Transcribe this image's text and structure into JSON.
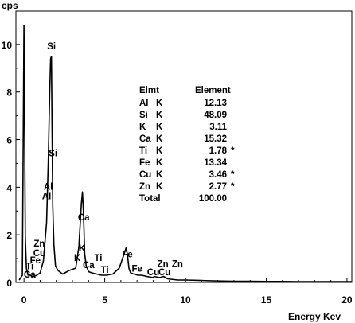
{
  "chart_data": {
    "type": "line",
    "title": "",
    "xlabel": "Energy Kev",
    "ylabel": "cps",
    "xlim": [
      -0.5,
      20.3
    ],
    "ylim": [
      0,
      11.4
    ],
    "x_ticks": [
      0,
      5,
      10,
      15,
      20
    ],
    "y_ticks": [
      0,
      2,
      4,
      6,
      8,
      10
    ],
    "grid": false,
    "series": [
      {
        "x": [
          -0.3,
          -0.1,
          0.0,
          0.08,
          0.15,
          0.25,
          0.3,
          0.4,
          0.5,
          0.6,
          0.8,
          1.0,
          1.2,
          1.4,
          1.5,
          1.6,
          1.65,
          1.7,
          1.74,
          1.78,
          1.85,
          1.95,
          2.1,
          2.4,
          2.8,
          3.2,
          3.4,
          3.55,
          3.62,
          3.69,
          3.76,
          3.85,
          4.0,
          4.2,
          4.5,
          4.8,
          5.1,
          5.5,
          5.9,
          6.2,
          6.32,
          6.4,
          6.5,
          6.6,
          6.8,
          7.06,
          7.3,
          7.6,
          8.0,
          8.05,
          8.4,
          8.64,
          8.9,
          9.5,
          10.0,
          11.0,
          12.0,
          13.0,
          14.0,
          15.0,
          16.0,
          17.0,
          18.0,
          19.0,
          20.0,
          20.3
        ],
        "y": [
          0.1,
          0.3,
          10.8,
          1.9,
          0.6,
          0.3,
          0.35,
          0.3,
          0.25,
          0.25,
          0.3,
          0.4,
          0.9,
          2.5,
          5.0,
          8.2,
          9.4,
          9.5,
          6.5,
          3.2,
          1.6,
          0.7,
          0.5,
          0.35,
          0.5,
          0.6,
          1.5,
          3.3,
          3.8,
          2.8,
          1.2,
          0.7,
          0.45,
          0.4,
          0.35,
          0.3,
          0.3,
          0.35,
          0.6,
          1.2,
          1.45,
          1.2,
          0.6,
          0.4,
          0.35,
          0.3,
          0.3,
          0.25,
          0.2,
          0.25,
          0.2,
          0.25,
          0.15,
          0.1,
          0.1,
          0.08,
          0.06,
          0.05,
          0.05,
          0.04,
          0.04,
          0.03,
          0.03,
          0.03,
          0.03,
          0.03
        ]
      }
    ],
    "peak_labels": [
      {
        "text": "Si",
        "x": 1.7,
        "y": 9.8
      },
      {
        "text": "Si",
        "x": 1.8,
        "y": 5.3
      },
      {
        "text": "Al",
        "x": 1.5,
        "y": 3.9
      },
      {
        "text": "Al",
        "x": 1.4,
        "y": 3.5
      },
      {
        "text": "Ca",
        "x": 3.7,
        "y": 2.6
      },
      {
        "text": "K",
        "x": 3.6,
        "y": 1.3
      },
      {
        "text": "K",
        "x": 3.3,
        "y": 0.9
      },
      {
        "text": "Ca",
        "x": 4.0,
        "y": 0.6
      },
      {
        "text": "Ti",
        "x": 4.6,
        "y": 0.9
      },
      {
        "text": "Ti",
        "x": 5.0,
        "y": 0.4
      },
      {
        "text": "Fe",
        "x": 6.4,
        "y": 1.05
      },
      {
        "text": "Fe",
        "x": 7.0,
        "y": 0.45
      },
      {
        "text": "Cu",
        "x": 8.0,
        "y": 0.3
      },
      {
        "text": "Cu",
        "x": 8.7,
        "y": 0.3
      },
      {
        "text": "Zn",
        "x": 8.6,
        "y": 0.65
      },
      {
        "text": "Zn",
        "x": 9.5,
        "y": 0.65
      },
      {
        "text": "Zn",
        "x": 0.95,
        "y": 1.5
      },
      {
        "text": "Cu",
        "x": 0.95,
        "y": 1.1
      },
      {
        "text": "Fe",
        "x": 0.7,
        "y": 0.8
      },
      {
        "text": "Ti",
        "x": 0.35,
        "y": 0.55
      },
      {
        "text": "Ca",
        "x": 0.35,
        "y": 0.2
      }
    ],
    "table": {
      "headers": [
        "Elmt",
        "Element"
      ],
      "rows": [
        {
          "elmt": "Al",
          "line": "K",
          "value": "12.13",
          "flag": ""
        },
        {
          "elmt": "Si",
          "line": "K",
          "value": "48.09",
          "flag": ""
        },
        {
          "elmt": "K",
          "line": "K",
          "value": "3.11",
          "flag": ""
        },
        {
          "elmt": "Ca",
          "line": "K",
          "value": "15.32",
          "flag": ""
        },
        {
          "elmt": "Ti",
          "line": "K",
          "value": "1.78",
          "flag": "*"
        },
        {
          "elmt": "Fe",
          "line": "K",
          "value": "13.34",
          "flag": ""
        },
        {
          "elmt": "Cu",
          "line": "K",
          "value": "3.46",
          "flag": "*"
        },
        {
          "elmt": "Zn",
          "line": "K",
          "value": "2.77",
          "flag": "*"
        }
      ],
      "total_label": "Total",
      "total_value": "100.00"
    }
  }
}
